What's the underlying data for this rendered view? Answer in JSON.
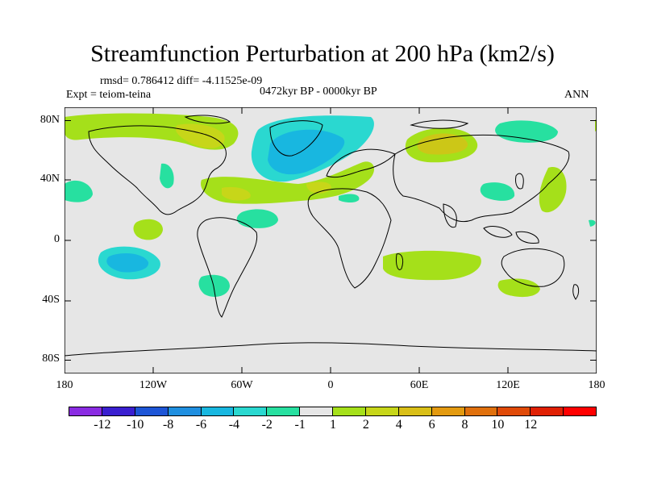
{
  "title": "Streamfunction Perturbation at 200 hPa (km2/s)",
  "stats": "rmsd= 0.786412 diff= -4.11525e-09",
  "experiment": "Expt = teiom-teina",
  "period": "0472kyr BP - 0000kyr BP",
  "season": "ANN",
  "lat_labels": [
    "80N",
    "40N",
    "0",
    "40S",
    "80S"
  ],
  "lon_labels": [
    "180",
    "120W",
    "60W",
    "0",
    "60E",
    "120E",
    "180"
  ],
  "colorbar": {
    "colors": [
      "#8a2be2",
      "#3a1fd0",
      "#1d55d6",
      "#1f8fe0",
      "#18b7e0",
      "#2ad8d0",
      "#27e0a0",
      "#e6e6e6",
      "#a5e01a",
      "#c7d619",
      "#d9bf17",
      "#e39a10",
      "#e0700c",
      "#e04a08",
      "#e02004",
      "#ff0000"
    ],
    "labels": [
      "-12",
      "-10",
      "-8",
      "-6",
      "-4",
      "-2",
      "-1",
      "1",
      "2",
      "4",
      "6",
      "8",
      "10",
      "12"
    ]
  },
  "map_colors": {
    "background": "#e6e6e6",
    "neg_light": "#27e0a0",
    "neg_mid": "#2ad8d0",
    "neg_strong": "#18b7e0",
    "pos_light": "#a5e01a",
    "pos_mid": "#c7d619",
    "pos_strong": "#d9bf17",
    "coast": "#000000"
  }
}
